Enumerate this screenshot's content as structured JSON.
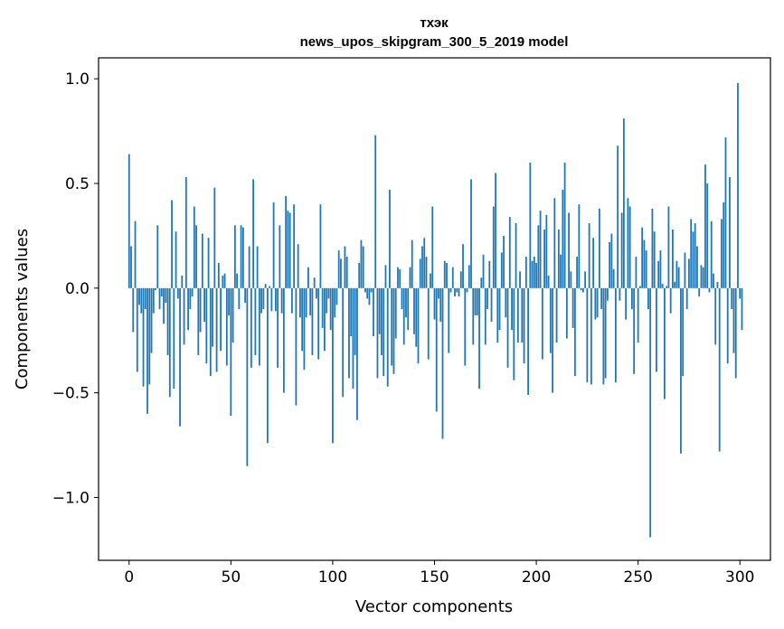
{
  "chart_data": {
    "type": "bar",
    "title_line1": "тхэк",
    "title_line2": "news_upos_skipgram_300_5_2019 model",
    "xlabel": "Vector components",
    "ylabel": "Components values",
    "xlim": [
      -15,
      315
    ],
    "ylim": [
      -1.3,
      1.1
    ],
    "xticks": [
      0,
      50,
      100,
      150,
      200,
      250,
      300
    ],
    "xtick_labels": [
      "0",
      "50",
      "100",
      "150",
      "200",
      "250",
      "300"
    ],
    "yticks": [
      -1.0,
      -0.5,
      0.0,
      0.5,
      1.0
    ],
    "ytick_labels": [
      "−1.0",
      "−0.5",
      "0.0",
      "0.5",
      "1.0"
    ],
    "bar_color": "#1f77b4",
    "values": [
      0.64,
      0.2,
      -0.21,
      0.32,
      -0.4,
      -0.08,
      -0.12,
      -0.47,
      -0.1,
      -0.6,
      -0.46,
      -0.31,
      -0.12,
      -0.01,
      0.3,
      -0.1,
      -0.04,
      -0.17,
      -0.07,
      -0.32,
      -0.52,
      0.42,
      -0.48,
      0.27,
      -0.05,
      -0.66,
      0.06,
      -0.27,
      0.53,
      -0.2,
      -0.1,
      -0.04,
      0.39,
      0.3,
      -0.32,
      -0.21,
      0.26,
      -0.16,
      -0.36,
      0.24,
      -0.42,
      -0.28,
      0.48,
      -0.4,
      0.12,
      -0.3,
      0.06,
      0.07,
      -0.37,
      -0.13,
      -0.61,
      -0.26,
      0.3,
      0.07,
      -0.1,
      0.3,
      0.29,
      -0.07,
      -0.85,
      0.2,
      -0.38,
      0.52,
      -0.32,
      0.2,
      -0.37,
      -0.12,
      -0.1,
      0.02,
      -0.74,
      0.01,
      -0.11,
      0.41,
      -0.11,
      -0.38,
      0.3,
      -0.12,
      -0.5,
      0.44,
      0.37,
      0.36,
      -0.12,
      0.4,
      -0.56,
      0.21,
      -0.14,
      -0.3,
      -0.39,
      -0.14,
      0.1,
      -0.13,
      -0.32,
      0.05,
      -0.05,
      -0.34,
      0.4,
      -0.19,
      -0.3,
      -0.12,
      -0.05,
      -0.2,
      -0.74,
      -0.14,
      -0.08,
      0.18,
      0.14,
      -0.52,
      0.2,
      0.15,
      -0.43,
      -0.23,
      -0.48,
      -0.32,
      -0.63,
      0.12,
      0.23,
      0.2,
      -0.02,
      -0.05,
      -0.08,
      -0.02,
      -0.23,
      0.73,
      -0.43,
      -0.22,
      -0.32,
      -0.42,
      0.11,
      -0.47,
      0.47,
      -0.37,
      -0.41,
      -0.24,
      0.1,
      0.09,
      -0.1,
      -0.27,
      -0.14,
      -0.2,
      0.1,
      0.23,
      -0.22,
      -0.28,
      -0.36,
      0.14,
      0.2,
      0.24,
      0.15,
      -0.34,
      0.07,
      0.39,
      -0.15,
      -0.59,
      -0.05,
      -0.16,
      -0.72,
      0.13,
      0.12,
      -0.31,
      -0.02,
      0.1,
      -0.04,
      -0.02,
      -0.04,
      0.08,
      0.21,
      -0.37,
      -0.02,
      0.11,
      0.52,
      -0.27,
      -0.13,
      -0.13,
      -0.48,
      0.05,
      0.16,
      -0.27,
      -0.1,
      0.13,
      -0.16,
      0.39,
      0.55,
      -0.26,
      -0.2,
      0.17,
      0.25,
      -0.14,
      -0.38,
      0.34,
      -0.2,
      -0.44,
      0.31,
      -0.26,
      0.08,
      -0.26,
      -0.36,
      0.15,
      -0.51,
      0.6,
      0.13,
      0.15,
      0.12,
      0.3,
      0.37,
      -0.34,
      0.28,
      0.35,
      0.06,
      -0.31,
      -0.5,
      0.43,
      -0.26,
      0.28,
      0.16,
      0.47,
      0.6,
      -0.24,
      0.36,
      0.08,
      -0.19,
      -0.42,
      0.15,
      0.4,
      -0.01,
      -0.02,
      0.08,
      -0.45,
      0.31,
      -0.46,
      0.24,
      -0.15,
      -0.14,
      0.38,
      -0.1,
      -0.46,
      -0.43,
      -0.06,
      0.22,
      0.26,
      0.09,
      -0.45,
      0.68,
      -0.06,
      0.36,
      0.81,
      -0.15,
      0.43,
      0.39,
      -0.1,
      -0.41,
      0.15,
      -0.26,
      0.01,
      0.29,
      0.23,
      0.18,
      -0.1,
      -1.19,
      0.38,
      0.27,
      -0.4,
      0.13,
      0.18,
      0.02,
      -0.53,
      0.01,
      0.39,
      -0.12,
      0.28,
      0.03,
      0.13,
      0.1,
      -0.79,
      -0.42,
      0.17,
      -0.1,
      0.14,
      0.33,
      0.27,
      0.31,
      0.2,
      -0.04,
      0.11,
      0.1,
      0.59,
      0.5,
      -0.02,
      0.32,
      0.07,
      -0.27,
      0.03,
      -0.78,
      0.33,
      0.41,
      0.72,
      -0.36,
      0.53,
      -0.1,
      -0.31,
      -0.43,
      0.98,
      -0.05,
      -0.2
    ]
  }
}
